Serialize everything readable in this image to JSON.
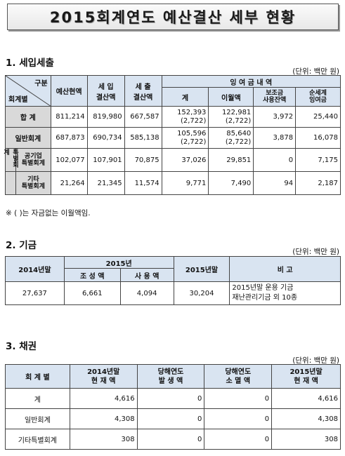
{
  "title": "2015회계연도 예산결산 세부 현황",
  "section1": {
    "heading": "1. 세입세출",
    "unit": "(단위: 백만 원)",
    "header": {
      "diag_top": "구분",
      "diag_bottom": "회계별",
      "col_budget": "예산현액",
      "col_revenue": "세 입\n결산액",
      "col_expense": "세 출\n결산액",
      "col_surplus_group": "잉 여 금 내 역",
      "col_total": "계",
      "col_carryover": "이월액",
      "col_subsidy": "보조금\n사용잔액",
      "col_net": "순세계\n잉여금"
    },
    "rows": [
      {
        "label": "합 계",
        "budget": "811,214",
        "revenue": "819,980",
        "expense": "667,587",
        "total": "152,393",
        "total_sub": "(2,722)",
        "carry": "122,981",
        "carry_sub": "(2,722)",
        "subsidy": "3,972",
        "net": "25,440"
      },
      {
        "label": "일반회계",
        "budget": "687,873",
        "revenue": "690,734",
        "expense": "585,138",
        "total": "105,596",
        "total_sub": "(2,722)",
        "carry": "85,640",
        "carry_sub": "(2,722)",
        "subsidy": "3,878",
        "net": "16,078"
      },
      {
        "label": "공기업\n특별회계",
        "budget": "102,077",
        "revenue": "107,901",
        "expense": "70,875",
        "total": "37,026",
        "total_sub": "",
        "carry": "29,851",
        "carry_sub": "",
        "subsidy": "0",
        "net": "7,175"
      },
      {
        "label": "기타\n특별회계",
        "budget": "21,264",
        "revenue": "21,345",
        "expense": "11,574",
        "total": "9,771",
        "total_sub": "",
        "carry": "7,490",
        "carry_sub": "",
        "subsidy": "94",
        "net": "2,187"
      }
    ],
    "special_group_label": "특별회계",
    "note": "※ ( )는 자금없는 이월액임."
  },
  "section2": {
    "heading": "2. 기금",
    "unit": "(단위: 백만 원)",
    "header": {
      "col_2014": "2014년말",
      "col_2015": "2015년",
      "col_create": "조 성 액",
      "col_use": "사 용 액",
      "col_2015end": "2015년말",
      "col_remark": "비 고"
    },
    "row": {
      "y2014": "27,637",
      "create": "6,661",
      "use": "4,094",
      "y2015": "30,204",
      "remark1": "2015년말 운용 기금",
      "remark2": "재난관리기금 외 10종"
    }
  },
  "section3": {
    "heading": "3. 채권",
    "unit": "(단위: 백만 원)",
    "header": {
      "col_account": "회 계 별",
      "col_2014": "2014년말\n현 재 액",
      "col_occur": "당해연도\n발 생 액",
      "col_extinct": "당해연도\n소 멸 액",
      "col_2015": "2015년말\n현 재 액"
    },
    "rows": [
      {
        "label": "계",
        "y2014": "4,616",
        "occur": "0",
        "extinct": "0",
        "y2015": "4,616"
      },
      {
        "label": "일반회계",
        "y2014": "4,308",
        "occur": "0",
        "extinct": "0",
        "y2015": "4,308"
      },
      {
        "label": "기타특별회계",
        "y2014": "308",
        "occur": "0",
        "extinct": "0",
        "y2015": "308"
      }
    ]
  }
}
